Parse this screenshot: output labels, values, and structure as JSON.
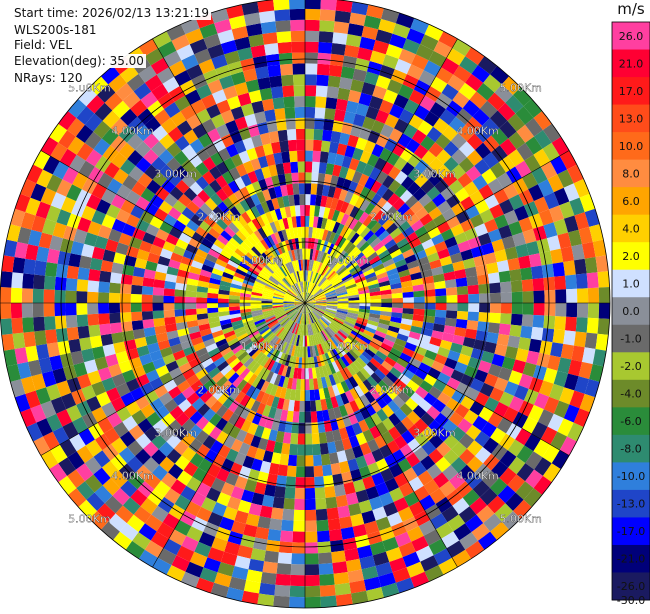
{
  "header": {
    "start_time": "Start time: 2026/02/13 13:21:19",
    "instrument": "WLS200s-181",
    "field": "Field: VEL",
    "elevation": "Elevation(deg): 35.00",
    "nrays": "NRays: 120"
  },
  "chart_data": {
    "type": "heatmap",
    "subtype": "polar-ppi",
    "range_ring_labels": [
      "1.00Km",
      "2.00Km",
      "3.00Km",
      "4.00Km",
      "5.00Km"
    ],
    "colorbar": {
      "unit": "m/s",
      "ticks": [
        "26.0",
        "21.0",
        "17.0",
        "13.0",
        "10.0",
        "8.0",
        "6.0",
        "4.0",
        "2.0",
        "1.0",
        "0.0",
        "-1.0",
        "-2.0",
        "-4.0",
        "-6.0",
        "-8.0",
        "-10.0",
        "-13.0",
        "-17.0",
        "-21.0",
        "-26.0",
        "-30.0"
      ],
      "colors": [
        "#ff3fa0",
        "#ff0033",
        "#ff1a1a",
        "#ff4c1a",
        "#ff6a1a",
        "#ff8c40",
        "#ffa500",
        "#ffd000",
        "#ffff00",
        "#cfe0ff",
        "#8a8f99",
        "#6a6a6a",
        "#a8c830",
        "#6d8b2a",
        "#2a8c3a",
        "#2e8b70",
        "#2f7fdc",
        "#1f45c8",
        "#0000ff",
        "#00007a",
        "#1a1a60"
      ]
    },
    "rays": 120,
    "gates": 28,
    "grid": true
  }
}
